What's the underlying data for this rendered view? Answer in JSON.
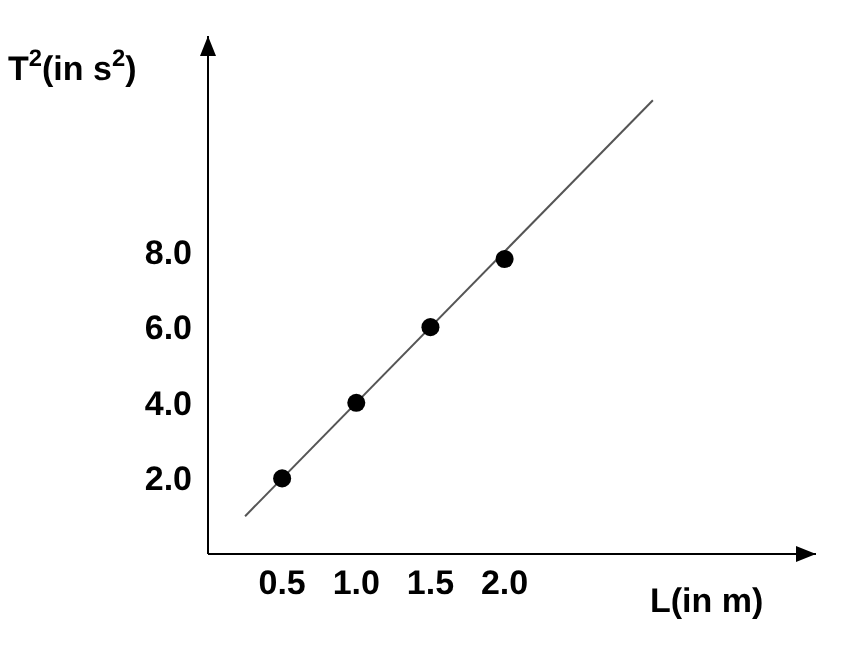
{
  "chart_data": {
    "type": "scatter",
    "xlabel": "L(in m)",
    "ylabel": "T$^{2}$(in s$^{2}$)",
    "x": [
      0.5,
      1.0,
      1.5,
      2.0
    ],
    "series": [
      {
        "color": "#000000",
        "values": [
          2.0,
          4.0,
          6.0,
          7.8
        ],
        "marker": "circle"
      },
      {
        "type": "line",
        "color": "#555555",
        "x": [
          0.25,
          3.0
        ],
        "values": [
          1.0,
          12.0
        ],
        "marker": "none",
        "line_style": "solid"
      }
    ],
    "xlim": [
      0,
      4.1
    ],
    "ylim": [
      0,
      13.7
    ],
    "xticks": [
      {
        "value": 0.5,
        "label": "0.5"
      },
      {
        "value": 1.0,
        "label": "1.0"
      },
      {
        "value": 1.5,
        "label": "1.5"
      },
      {
        "value": 2.0,
        "label": "2.0"
      }
    ],
    "yticks": [
      {
        "value": 2,
        "label": "2.0"
      },
      {
        "value": 4,
        "label": "4.0"
      },
      {
        "value": 6,
        "label": "6.0"
      },
      {
        "value": 8,
        "label": "8.0"
      }
    ],
    "grid": false,
    "legend": false
  }
}
